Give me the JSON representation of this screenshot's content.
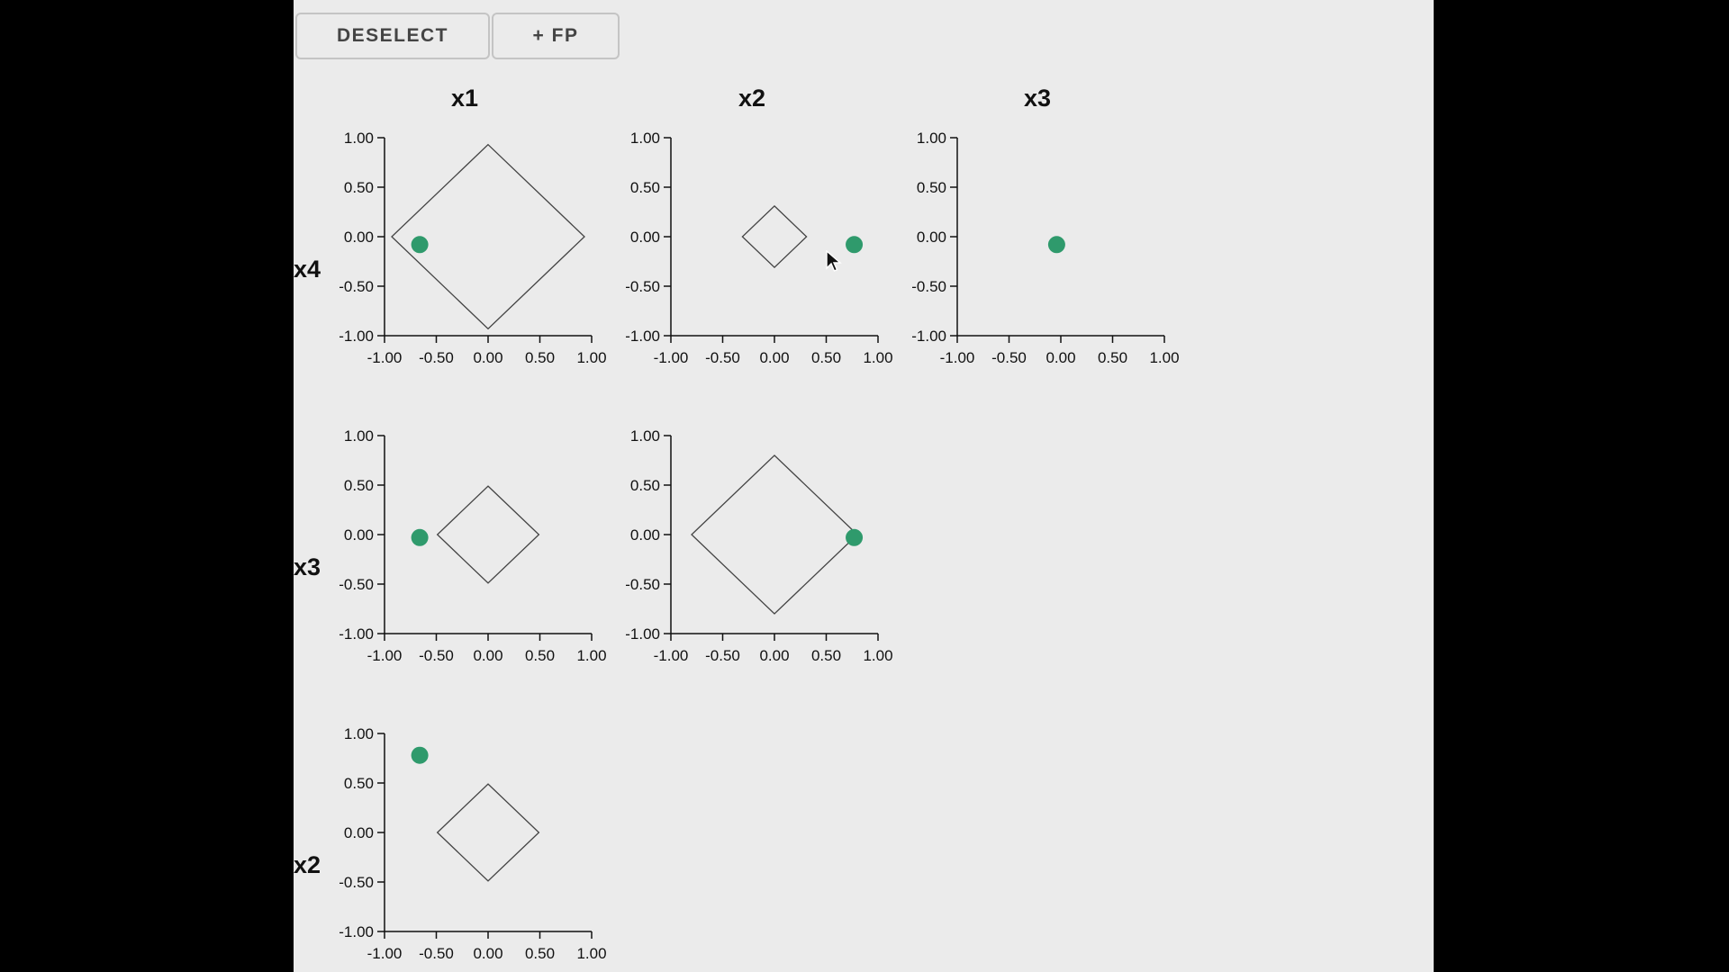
{
  "toolbar": {
    "deselect_label": "DESELECT",
    "add_fp_label": "+ FP"
  },
  "column_labels": [
    "x1",
    "x2",
    "x3"
  ],
  "row_labels": [
    "x4",
    "x3",
    "x2"
  ],
  "colors": {
    "point": "#2f9a6c",
    "diamond_stroke": "#444444",
    "axis": "#111111",
    "background": "#ebebeb"
  },
  "chart_data": [
    {
      "type": "scatter",
      "row": "x4",
      "col": "x1",
      "xlim": [
        -1,
        1
      ],
      "ylim": [
        -1,
        1
      ],
      "xticks": [
        "-1.00",
        "-0.50",
        "0.00",
        "0.50",
        "1.00"
      ],
      "yticks": [
        "1.00",
        "0.50",
        "0.00",
        "-0.50",
        "-1.00"
      ],
      "diamond_radius": 0.93,
      "points": [
        {
          "x": -0.66,
          "y": -0.08
        }
      ]
    },
    {
      "type": "scatter",
      "row": "x4",
      "col": "x2",
      "xlim": [
        -1,
        1
      ],
      "ylim": [
        -1,
        1
      ],
      "xticks": [
        "-1.00",
        "-0.50",
        "0.00",
        "0.50",
        "1.00"
      ],
      "yticks": [
        "1.00",
        "0.50",
        "0.00",
        "-0.50",
        "-1.00"
      ],
      "diamond_radius": 0.31,
      "points": [
        {
          "x": 0.77,
          "y": -0.08
        }
      ]
    },
    {
      "type": "scatter",
      "row": "x4",
      "col": "x3",
      "xlim": [
        -1,
        1
      ],
      "ylim": [
        -1,
        1
      ],
      "xticks": [
        "-1.00",
        "-0.50",
        "0.00",
        "0.50",
        "1.00"
      ],
      "yticks": [
        "1.00",
        "0.50",
        "0.00",
        "-0.50",
        "-1.00"
      ],
      "diamond_radius": 0,
      "points": [
        {
          "x": -0.04,
          "y": -0.08
        }
      ]
    },
    {
      "type": "scatter",
      "row": "x3",
      "col": "x1",
      "xlim": [
        -1,
        1
      ],
      "ylim": [
        -1,
        1
      ],
      "xticks": [
        "-1.00",
        "-0.50",
        "0.00",
        "0.50",
        "1.00"
      ],
      "yticks": [
        "1.00",
        "0.50",
        "0.00",
        "-0.50",
        "-1.00"
      ],
      "diamond_radius": 0.49,
      "points": [
        {
          "x": -0.66,
          "y": -0.03
        }
      ]
    },
    {
      "type": "scatter",
      "row": "x3",
      "col": "x2",
      "xlim": [
        -1,
        1
      ],
      "ylim": [
        -1,
        1
      ],
      "xticks": [
        "-1.00",
        "-0.50",
        "0.00",
        "0.50",
        "1.00"
      ],
      "yticks": [
        "1.00",
        "0.50",
        "0.00",
        "-0.50",
        "-1.00"
      ],
      "diamond_radius": 0.8,
      "points": [
        {
          "x": 0.77,
          "y": -0.03
        }
      ]
    },
    {
      "type": "scatter",
      "row": "x2",
      "col": "x1",
      "xlim": [
        -1,
        1
      ],
      "ylim": [
        -1,
        1
      ],
      "xticks": [
        "-1.00",
        "-0.50",
        "0.00",
        "0.50",
        "1.00"
      ],
      "yticks": [
        "1.00",
        "0.50",
        "0.00",
        "-0.50",
        "-1.00"
      ],
      "diamond_radius": 0.49,
      "points": [
        {
          "x": -0.66,
          "y": 0.78
        }
      ]
    }
  ]
}
